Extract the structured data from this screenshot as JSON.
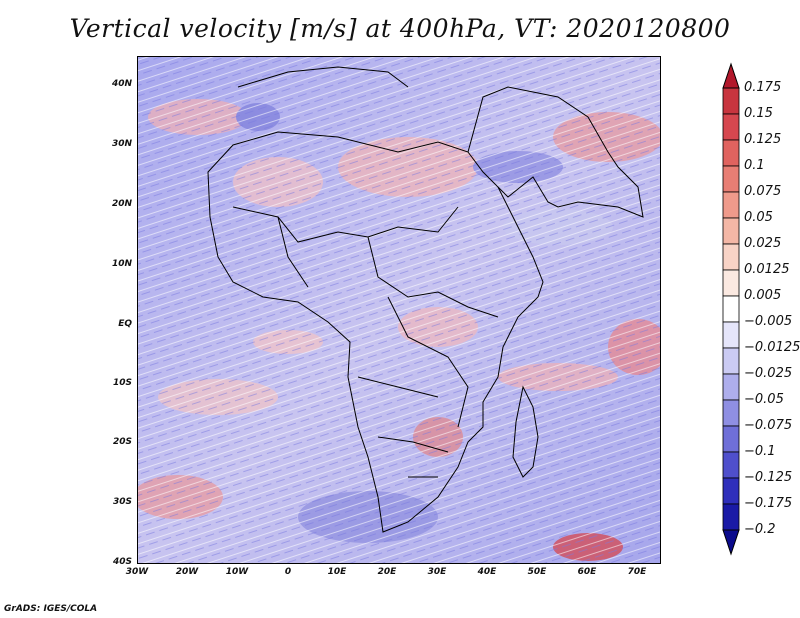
{
  "title": "Vertical velocity [m/s] at 400hPa, VT: 2020120800",
  "map": {
    "lat_ticks": [
      "40N",
      "30N",
      "20N",
      "10N",
      "EQ",
      "10S",
      "20S",
      "30S",
      "40S"
    ],
    "lon_ticks": [
      "30W",
      "20W",
      "10W",
      "0",
      "10E",
      "20E",
      "30E",
      "40E",
      "50E",
      "60E",
      "70E"
    ]
  },
  "colorbar": {
    "labels": [
      "0.175",
      "0.15",
      "0.125",
      "0.1",
      "0.075",
      "0.05",
      "0.025",
      "0.0125",
      "0.005",
      "−0.005",
      "−0.0125",
      "−0.025",
      "−0.05",
      "−0.075",
      "−0.1",
      "−0.125",
      "−0.175",
      "−0.2"
    ],
    "colors": [
      "#b2182b",
      "#c8353f",
      "#d6474f",
      "#e0635f",
      "#e87e74",
      "#ef9a8b",
      "#f4b7a6",
      "#f8d3c6",
      "#fbe9e1",
      "#ffffff",
      "#e5e5fa",
      "#cbcbf3",
      "#aeaeec",
      "#8f8fe3",
      "#6f6fd8",
      "#4f4fcc",
      "#2f2fbb",
      "#1a1aa6",
      "#0b0b8c"
    ]
  },
  "credit": "GrADS: IGES/COLA"
}
